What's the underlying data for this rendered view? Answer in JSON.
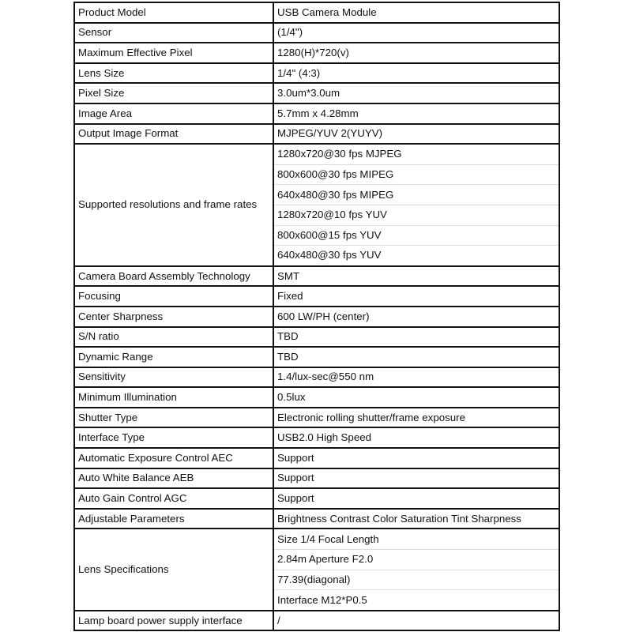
{
  "spec_table": {
    "rows": [
      {
        "label": "Product Model",
        "values": [
          "USB Camera Module"
        ]
      },
      {
        "label": "Sensor",
        "values": [
          "(1/4\")"
        ]
      },
      {
        "label": "Maximum Effective Pixel",
        "values": [
          "1280(H)*720(v)"
        ]
      },
      {
        "label": "Lens Size",
        "values": [
          "1/4\" (4:3)"
        ]
      },
      {
        "label": "Pixel Size",
        "values": [
          "3.0um*3.0um"
        ]
      },
      {
        "label": "Image Area",
        "values": [
          "5.7mm x 4.28mm"
        ]
      },
      {
        "label": "Output Image Format",
        "values": [
          "MJPEG/YUV 2(YUYV)"
        ]
      },
      {
        "label": "Supported resolutions and frame rates",
        "values": [
          "1280x720@30 fps MJPEG",
          "800x600@30 fps MIPEG",
          "640x480@30 fps MIPEG",
          "1280x720@10 fps YUV",
          "800x600@15 fps YUV",
          "640x480@30 fps YUV"
        ]
      },
      {
        "label": "Camera Board Assembly Technology",
        "values": [
          "SMT"
        ]
      },
      {
        "label": "Focusing",
        "values": [
          "Fixed"
        ]
      },
      {
        "label": "Center Sharpness",
        "values": [
          "600 LW/PH (center)"
        ]
      },
      {
        "label": "S/N ratio",
        "values": [
          "TBD"
        ]
      },
      {
        "label": "Dynamic Range",
        "values": [
          "TBD"
        ]
      },
      {
        "label": "Sensitivity",
        "values": [
          "1.4/lux-sec@550 nm"
        ]
      },
      {
        "label": "Minimum Illumination",
        "values": [
          "0.5lux"
        ]
      },
      {
        "label": "Shutter Type",
        "values": [
          "Electronic rolling shutter/frame exposure"
        ]
      },
      {
        "label": "Interface Type",
        "values": [
          "USB2.0 High Speed"
        ]
      },
      {
        "label": "Automatic Exposure Control AEC",
        "values": [
          "Support"
        ]
      },
      {
        "label": "Auto White Balance AEB",
        "values": [
          "Support"
        ]
      },
      {
        "label": "Auto Gain Control AGC",
        "values": [
          "Support"
        ]
      },
      {
        "label": "Adjustable Parameters",
        "values": [
          "Brightness Contrast Color Saturation Tint Sharpness"
        ]
      },
      {
        "label": "Lens Specifications",
        "values": [
          "Size 1/4 Focal Length",
          "2.84m Aperture F2.0",
          "77.39(diagonal)",
          "Interface M12*P0.5"
        ]
      },
      {
        "label": "Lamp board power supply interface",
        "values": [
          "/"
        ]
      }
    ]
  }
}
